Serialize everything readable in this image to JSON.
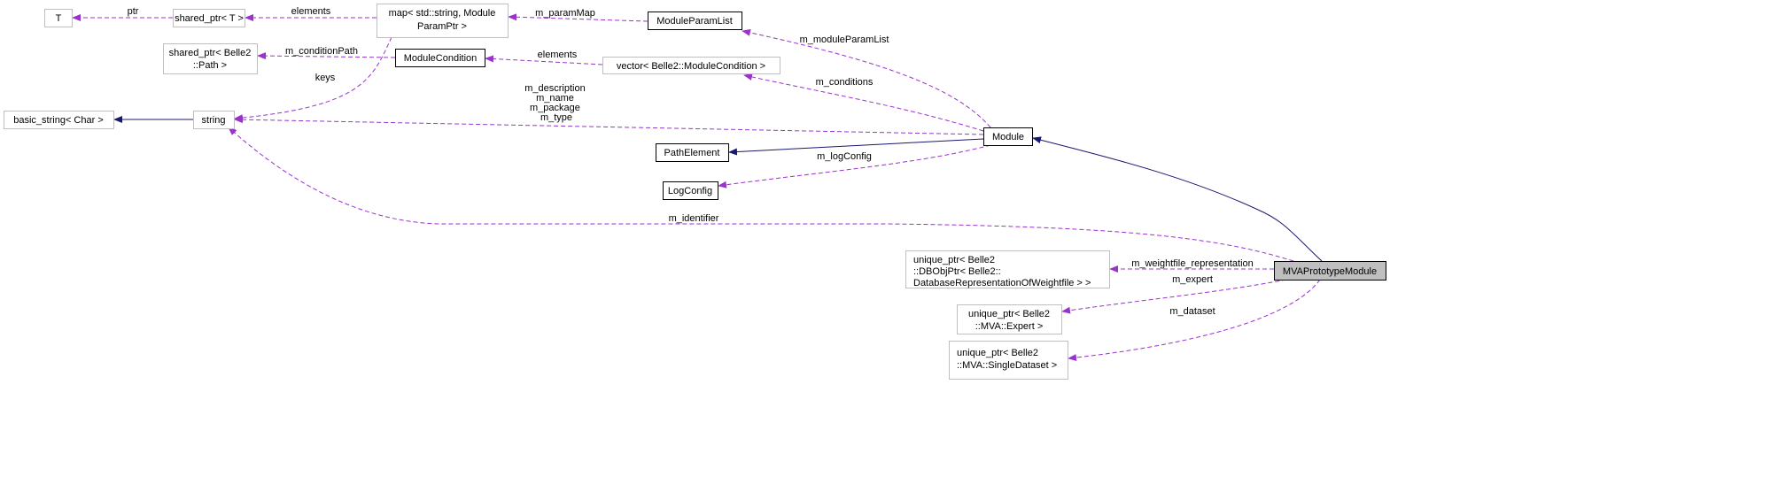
{
  "colors": {
    "dependency": "#9a32cd",
    "inheritance": "#191970",
    "focus_fill": "#bfbfbf"
  },
  "nodes": {
    "t": {
      "lines": [
        "T"
      ]
    },
    "shared_ptr_t": {
      "lines": [
        "shared_ptr< T >"
      ]
    },
    "map": {
      "lines": [
        "map< std::string, Module",
        "ParamPtr >"
      ]
    },
    "module_param_list": {
      "lines": [
        "ModuleParamList"
      ]
    },
    "shared_ptr_path": {
      "lines": [
        "shared_ptr< Belle2",
        "::Path >"
      ]
    },
    "module_condition": {
      "lines": [
        "ModuleCondition"
      ]
    },
    "vector_condition": {
      "lines": [
        "vector< Belle2::ModuleCondition >"
      ]
    },
    "basic_string": {
      "lines": [
        "basic_string< Char >"
      ]
    },
    "string": {
      "lines": [
        "string"
      ]
    },
    "module": {
      "lines": [
        "Module"
      ]
    },
    "path_element": {
      "lines": [
        "PathElement"
      ]
    },
    "log_config": {
      "lines": [
        "LogConfig"
      ]
    },
    "dbobjptr": {
      "lines": [
        "unique_ptr< Belle2",
        "::DBObjPtr< Belle2::",
        "DatabaseRepresentationOfWeightfile > >"
      ]
    },
    "mva_prototype_module": {
      "lines": [
        "MVAPrototypeModule"
      ]
    },
    "expert": {
      "lines": [
        "unique_ptr< Belle2",
        "::MVA::Expert >"
      ]
    },
    "single_dataset": {
      "lines": [
        "unique_ptr< Belle2",
        "::MVA::SingleDataset >"
      ]
    }
  },
  "edges": {
    "ptr": "ptr",
    "map_elements": "elements",
    "param_map": "m_paramMap",
    "keys": "keys",
    "condition_path": "m_conditionPath",
    "vector_elements": "elements",
    "module_param_list": "m_moduleParamList",
    "conditions": "m_conditions",
    "module_strings": [
      "m_description",
      "m_name",
      "m_package",
      "m_type"
    ],
    "log_config": "m_logConfig",
    "identifier": "m_identifier",
    "weightfile": "m_weightfile_representation",
    "expert": "m_expert",
    "dataset": "m_dataset"
  }
}
